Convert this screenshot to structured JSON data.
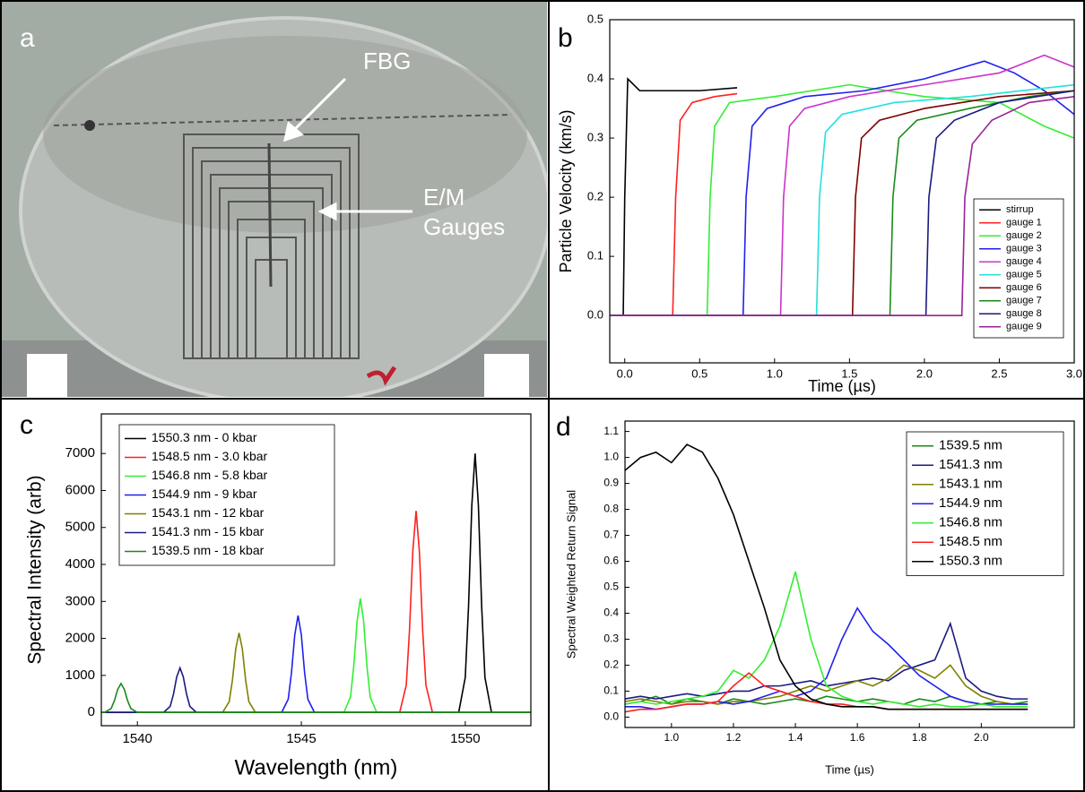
{
  "chart_data": [
    {
      "type": "photo",
      "panel": "a",
      "annotations": [
        "FBG",
        "E/M",
        "Gauges"
      ]
    },
    {
      "type": "line",
      "panel": "b",
      "xlabel": "Time (µs)",
      "ylabel": "Particle Velocity (km/s)",
      "xlim": [
        -0.1,
        3.0
      ],
      "ylim": [
        -0.08,
        0.5
      ],
      "xticks": [
        {
          "value": 0,
          "label": "0.0"
        },
        {
          "value": 0.5,
          "label": "0.5"
        },
        {
          "value": 1,
          "label": "1.0"
        },
        {
          "value": 1.5,
          "label": "1.5"
        },
        {
          "value": 2,
          "label": "2.0"
        },
        {
          "value": 2.5,
          "label": "2.5"
        },
        {
          "value": 3,
          "label": "3.0"
        }
      ],
      "yticks": [
        {
          "value": 0,
          "label": "0.0"
        },
        0.1,
        0.2,
        0.3,
        0.4,
        0.5
      ],
      "legend": "lower right",
      "series": [
        {
          "name": "stirrup",
          "color": "#000000",
          "x": [
            -0.1,
            -0.01,
            0.0,
            0.02,
            0.1,
            0.3,
            0.5,
            0.75
          ],
          "values": [
            0,
            0,
            0.2,
            0.4,
            0.38,
            0.38,
            0.38,
            0.385
          ]
        },
        {
          "name": "gauge 1",
          "color": "#ff2020",
          "x": [
            -0.1,
            0.32,
            0.34,
            0.37,
            0.45,
            0.6,
            0.75
          ],
          "values": [
            0,
            0,
            0.2,
            0.33,
            0.36,
            0.37,
            0.375
          ]
        },
        {
          "name": "gauge 2",
          "color": "#33ee33",
          "x": [
            -0.1,
            0.55,
            0.57,
            0.6,
            0.7,
            1.0,
            1.5,
            2.0,
            2.5,
            2.8,
            3.0
          ],
          "values": [
            0,
            0,
            0.2,
            0.32,
            0.36,
            0.37,
            0.39,
            0.37,
            0.36,
            0.32,
            0.3
          ]
        },
        {
          "name": "gauge 3",
          "color": "#2020ee",
          "x": [
            -0.1,
            0.79,
            0.81,
            0.85,
            0.95,
            1.2,
            1.6,
            2.0,
            2.4,
            2.6,
            2.8,
            3.0
          ],
          "values": [
            0,
            0,
            0.2,
            0.32,
            0.35,
            0.37,
            0.38,
            0.4,
            0.43,
            0.41,
            0.38,
            0.34
          ]
        },
        {
          "name": "gauge 4",
          "color": "#cc33cc",
          "x": [
            -0.1,
            1.04,
            1.06,
            1.1,
            1.2,
            1.5,
            2.0,
            2.5,
            2.8,
            3.0
          ],
          "values": [
            0,
            0,
            0.2,
            0.32,
            0.35,
            0.37,
            0.39,
            0.41,
            0.44,
            0.42
          ]
        },
        {
          "name": "gauge 5",
          "color": "#22e0e0",
          "x": [
            -0.1,
            1.28,
            1.3,
            1.34,
            1.45,
            1.8,
            2.3,
            3.0
          ],
          "values": [
            0,
            0,
            0.2,
            0.31,
            0.34,
            0.36,
            0.37,
            0.39
          ]
        },
        {
          "name": "gauge 6",
          "color": "#800000",
          "x": [
            -0.1,
            1.52,
            1.54,
            1.58,
            1.7,
            2.0,
            2.5,
            3.0
          ],
          "values": [
            0,
            0,
            0.2,
            0.3,
            0.33,
            0.35,
            0.37,
            0.38
          ]
        },
        {
          "name": "gauge 7",
          "color": "#1a8a1a",
          "x": [
            -0.1,
            1.77,
            1.79,
            1.83,
            1.95,
            2.3,
            2.7,
            3.0
          ],
          "values": [
            0,
            0,
            0.2,
            0.3,
            0.33,
            0.35,
            0.37,
            0.38
          ]
        },
        {
          "name": "gauge 8",
          "color": "#1a1a80",
          "x": [
            -0.1,
            2.01,
            2.03,
            2.08,
            2.2,
            2.5,
            3.0
          ],
          "values": [
            0,
            0,
            0.2,
            0.3,
            0.33,
            0.36,
            0.38
          ]
        },
        {
          "name": "gauge 9",
          "color": "#992299",
          "x": [
            -0.1,
            2.25,
            2.27,
            2.32,
            2.45,
            2.7,
            3.0
          ],
          "values": [
            0,
            0,
            0.2,
            0.29,
            0.33,
            0.36,
            0.37
          ]
        }
      ]
    },
    {
      "type": "line",
      "panel": "c",
      "xlabel": "Wavelength (nm)",
      "ylabel": "Spectral Intensity (arb)",
      "xlim": [
        1538.9,
        1552
      ],
      "ylim": [
        -360,
        8070
      ],
      "xticks": [
        1540,
        1545,
        1550
      ],
      "yticks": [
        0,
        1000,
        2000,
        3000,
        4000,
        5000,
        6000,
        7000
      ],
      "legend": "upper left",
      "series": [
        {
          "name": "1550.3 nm - 0 kbar",
          "color": "#000000",
          "x": [
            1538.9,
            1549.8,
            1550.0,
            1550.1,
            1550.2,
            1550.3,
            1550.4,
            1550.5,
            1550.6,
            1550.8,
            1552
          ],
          "values": [
            0,
            0,
            945,
            2870,
            5600,
            7000,
            5600,
            2870,
            945,
            0,
            0
          ]
        },
        {
          "name": "1548.5 nm - 3.0 kbar",
          "color": "#ff2020",
          "x": [
            1538.9,
            1548.0,
            1548.2,
            1548.3,
            1548.4,
            1548.5,
            1548.6,
            1548.7,
            1548.8,
            1549.0,
            1552
          ],
          "values": [
            0,
            0,
            736,
            2235,
            4360,
            5450,
            4360,
            2235,
            736,
            0,
            0
          ]
        },
        {
          "name": "1546.8 nm - 5.8 kbar",
          "color": "#33ee33",
          "x": [
            1538.9,
            1546.3,
            1546.5,
            1546.6,
            1546.7,
            1546.8,
            1546.9,
            1547.0,
            1547.1,
            1547.3,
            1552
          ],
          "values": [
            0,
            0,
            416,
            1263,
            2464,
            3080,
            2464,
            1263,
            416,
            0,
            0
          ]
        },
        {
          "name": "1544.9 nm - 9 kbar",
          "color": "#2020ee",
          "x": [
            1538.9,
            1544.4,
            1544.6,
            1544.7,
            1544.8,
            1544.9,
            1545.0,
            1545.1,
            1545.2,
            1545.4,
            1552
          ],
          "values": [
            0,
            0,
            354,
            1074,
            2096,
            2620,
            2096,
            1074,
            354,
            0,
            0
          ]
        },
        {
          "name": "1543.1 nm - 12 kbar",
          "color": "#808000",
          "x": [
            1538.9,
            1542.6,
            1542.8,
            1542.9,
            1543.0,
            1543.1,
            1543.2,
            1543.3,
            1543.4,
            1543.6,
            1552
          ],
          "values": [
            0,
            0,
            290,
            882,
            1720,
            2150,
            1720,
            882,
            290,
            0,
            0
          ]
        },
        {
          "name": "1541.3 nm - 15 kbar",
          "color": "#1a1a80",
          "x": [
            1538.9,
            1540.8,
            1541.0,
            1541.1,
            1541.2,
            1541.3,
            1541.4,
            1541.5,
            1541.6,
            1541.8,
            1552
          ],
          "values": [
            0,
            0,
            162,
            492,
            960,
            1200,
            960,
            492,
            162,
            0,
            0
          ]
        },
        {
          "name": "1539.5 nm - 18 kbar",
          "color": "#1a8a1a",
          "x": [
            1538.9,
            1539.0,
            1539.2,
            1539.3,
            1539.4,
            1539.5,
            1539.6,
            1539.7,
            1539.8,
            1540.0,
            1552
          ],
          "values": [
            0,
            0,
            105,
            320,
            624,
            780,
            624,
            320,
            105,
            0,
            0
          ]
        }
      ]
    },
    {
      "type": "line",
      "panel": "d",
      "xlabel": "Time (µs)",
      "ylabel": "Spectral Weighted Return Signal",
      "xlim": [
        0.85,
        2.3
      ],
      "ylim": [
        -0.04,
        1.14
      ],
      "xticks": [
        {
          "value": 1,
          "label": "1.0"
        },
        1.2,
        1.4,
        1.6,
        1.8,
        {
          "value": 2,
          "label": "2.0"
        }
      ],
      "yticks": [
        {
          "value": 0,
          "label": "0.0"
        },
        0.1,
        0.2,
        0.3,
        0.4,
        0.5,
        0.6,
        0.7,
        0.8,
        0.9,
        {
          "value": 1,
          "label": "1.0"
        },
        1.1
      ],
      "legend": "upper right",
      "x": [
        0.85,
        0.9,
        0.95,
        1.0,
        1.05,
        1.1,
        1.15,
        1.2,
        1.25,
        1.3,
        1.35,
        1.4,
        1.45,
        1.5,
        1.55,
        1.6,
        1.65,
        1.7,
        1.75,
        1.8,
        1.85,
        1.9,
        1.95,
        2.0,
        2.05,
        2.1,
        2.15
      ],
      "series": [
        {
          "name": "1539.5 nm",
          "color": "#1a8a1a",
          "values": [
            0.05,
            0.06,
            0.08,
            0.05,
            0.07,
            0.06,
            0.05,
            0.07,
            0.06,
            0.05,
            0.06,
            0.07,
            0.06,
            0.08,
            0.07,
            0.06,
            0.07,
            0.06,
            0.05,
            0.07,
            0.06,
            0.08,
            0.06,
            0.05,
            0.06,
            0.05,
            0.06
          ]
        },
        {
          "name": "1541.3 nm",
          "color": "#1a1a80",
          "values": [
            0.07,
            0.08,
            0.07,
            0.08,
            0.09,
            0.08,
            0.09,
            0.1,
            0.1,
            0.12,
            0.12,
            0.13,
            0.14,
            0.12,
            0.13,
            0.14,
            0.15,
            0.14,
            0.18,
            0.2,
            0.22,
            0.36,
            0.15,
            0.1,
            0.08,
            0.07,
            0.07
          ]
        },
        {
          "name": "1543.1 nm",
          "color": "#808000",
          "values": [
            0.06,
            0.07,
            0.06,
            0.05,
            0.06,
            0.06,
            0.05,
            0.06,
            0.06,
            0.07,
            0.08,
            0.1,
            0.12,
            0.1,
            0.12,
            0.14,
            0.12,
            0.15,
            0.2,
            0.18,
            0.15,
            0.2,
            0.12,
            0.08,
            0.06,
            0.05,
            0.05
          ]
        },
        {
          "name": "1544.9 nm",
          "color": "#2020ee",
          "values": [
            0.04,
            0.04,
            0.03,
            0.04,
            0.05,
            0.05,
            0.06,
            0.05,
            0.06,
            0.08,
            0.1,
            0.08,
            0.1,
            0.15,
            0.3,
            0.42,
            0.33,
            0.28,
            0.22,
            0.16,
            0.12,
            0.08,
            0.06,
            0.05,
            0.05,
            0.05,
            0.05
          ]
        },
        {
          "name": "1546.8 nm",
          "color": "#33ee33",
          "values": [
            0.05,
            0.06,
            0.05,
            0.06,
            0.07,
            0.08,
            0.1,
            0.18,
            0.15,
            0.22,
            0.35,
            0.56,
            0.3,
            0.12,
            0.08,
            0.06,
            0.05,
            0.06,
            0.05,
            0.04,
            0.05,
            0.04,
            0.04,
            0.05,
            0.04,
            0.04,
            0.04
          ]
        },
        {
          "name": "1548.5 nm",
          "color": "#ff2020",
          "values": [
            0.02,
            0.03,
            0.03,
            0.04,
            0.05,
            0.05,
            0.06,
            0.12,
            0.17,
            0.12,
            0.1,
            0.08,
            0.06,
            0.05,
            0.05,
            0.04,
            0.04,
            0.03,
            0.03,
            0.03,
            0.03,
            0.03,
            0.03,
            0.03,
            0.03,
            0.03,
            0.03
          ]
        },
        {
          "name": "1550.3 nm",
          "color": "#000000",
          "values": [
            0.95,
            1.0,
            1.02,
            0.98,
            1.05,
            1.02,
            0.92,
            0.78,
            0.6,
            0.42,
            0.22,
            0.12,
            0.07,
            0.05,
            0.04,
            0.04,
            0.04,
            0.03,
            0.03,
            0.03,
            0.03,
            0.03,
            0.03,
            0.03,
            0.03,
            0.03,
            0.03
          ]
        }
      ]
    }
  ]
}
